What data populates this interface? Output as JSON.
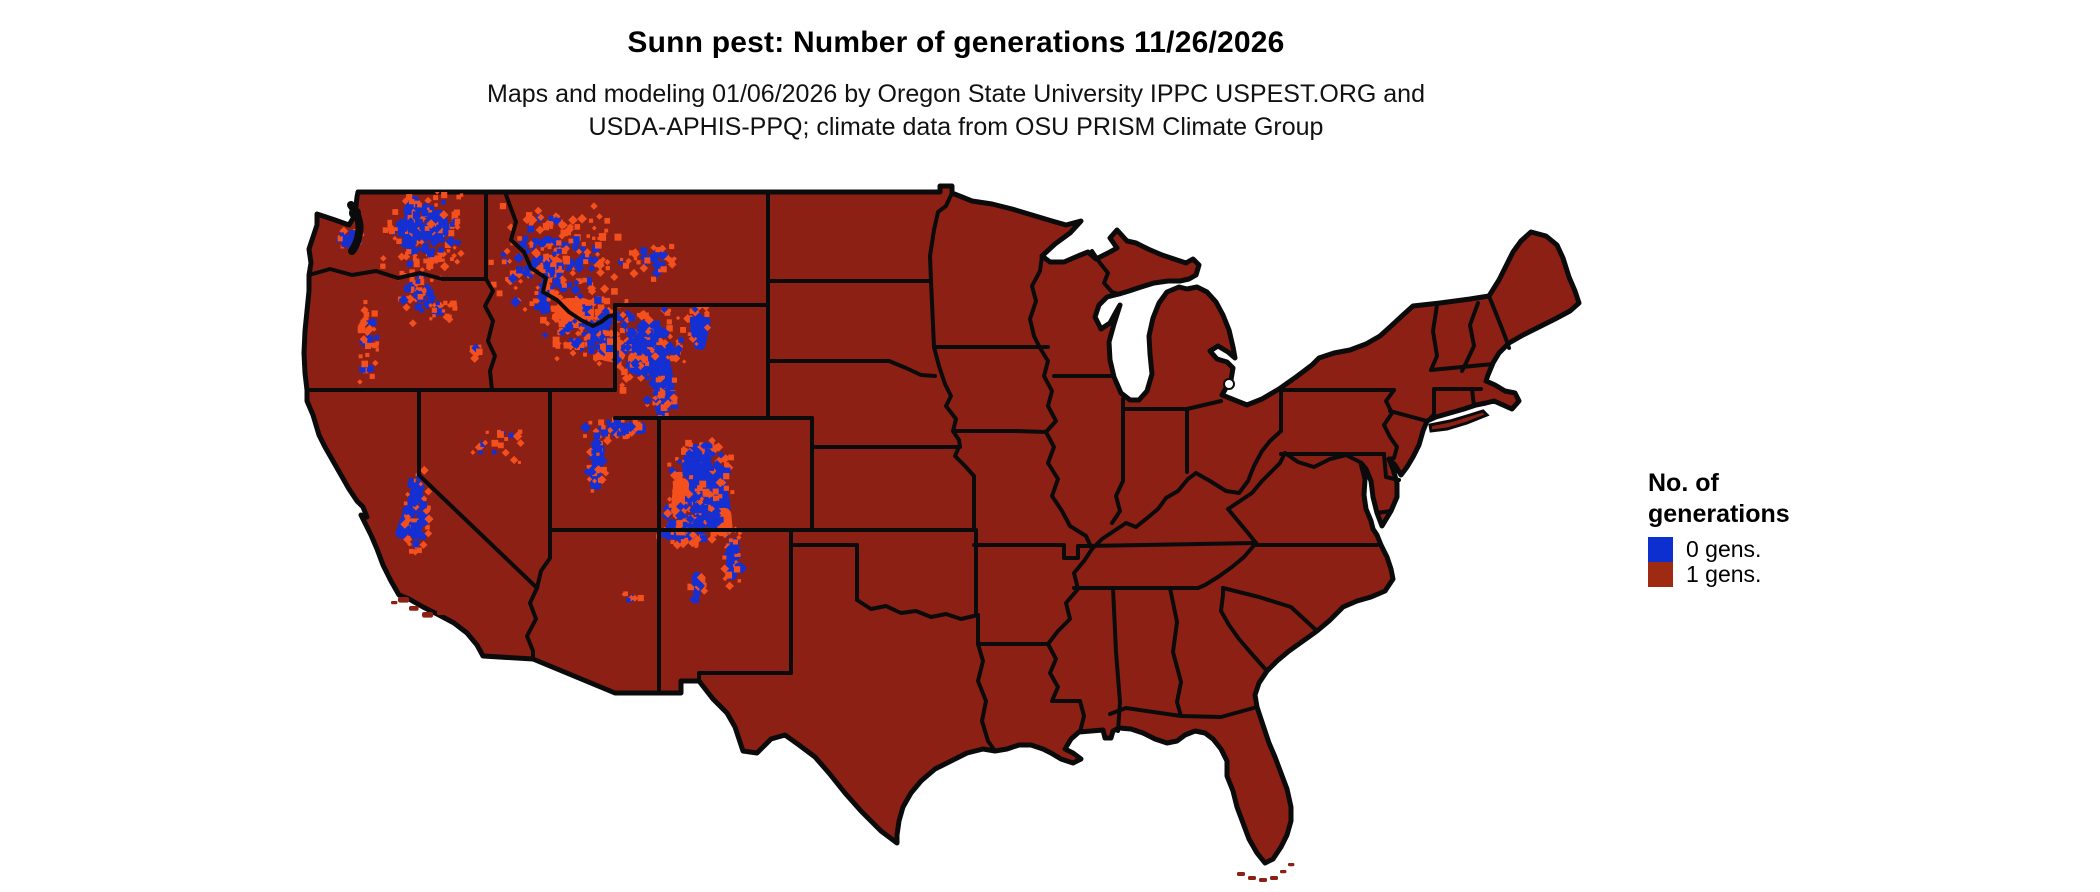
{
  "header": {
    "title": "Sunn pest: Number of generations 11/26/2026",
    "subtitle_line1": "Maps and modeling 01/06/2026 by Oregon State University IPPC USPEST.ORG and",
    "subtitle_line2": "USDA-APHIS-PPQ; climate data from OSU PRISM Climate Group"
  },
  "legend": {
    "title_line1": "No. of",
    "title_line2": "generations",
    "items": [
      {
        "label": "0 gens.",
        "color": "#0d2fd0"
      },
      {
        "label": "1 gens.",
        "color": "#9e2a12"
      }
    ]
  },
  "map": {
    "land_color": "#8d2015",
    "border_color": "#0b0b0b",
    "water_color": "#ffffff",
    "zero_gens_color": "#1430d2",
    "fringe_color": "#f4501e",
    "zero_gen_regions": [
      "Washington Cascades",
      "Olympic Mountains",
      "Oregon Cascades",
      "Northern Rockies (Idaho panhandle / western Montana)",
      "Yellowstone and Wind River ranges (Wyoming)",
      "Bighorn Mountains",
      "Uinta and Wasatch ranges (Utah)",
      "Colorado Rockies and Sangre de Cristo (into New Mexico)",
      "Sierra Nevada (California)"
    ],
    "speckle_clusters": [
      [
        425,
        230,
        45,
        42,
        170,
        0.5
      ],
      [
        420,
        292,
        24,
        38,
        55,
        0.35
      ],
      [
        350,
        240,
        13,
        11,
        22,
        0.55
      ],
      [
        368,
        342,
        11,
        48,
        40,
        0.3
      ],
      [
        441,
        310,
        16,
        13,
        18,
        0.45
      ],
      [
        558,
        262,
        68,
        58,
        230,
        0.3
      ],
      [
        592,
        330,
        52,
        38,
        150,
        0.35
      ],
      [
        650,
        262,
        30,
        20,
        35,
        0.25
      ],
      [
        648,
        350,
        42,
        48,
        170,
        0.5
      ],
      [
        698,
        325,
        13,
        20,
        35,
        0.6
      ],
      [
        662,
        395,
        18,
        24,
        40,
        0.5
      ],
      [
        614,
        428,
        32,
        11,
        40,
        0.55
      ],
      [
        597,
        462,
        11,
        34,
        42,
        0.5
      ],
      [
        702,
        468,
        34,
        30,
        130,
        0.55
      ],
      [
        700,
        515,
        38,
        34,
        150,
        0.5
      ],
      [
        733,
        560,
        11,
        30,
        40,
        0.5
      ],
      [
        676,
        532,
        20,
        14,
        45,
        0.45
      ],
      [
        416,
        515,
        15,
        48,
        85,
        0.55
      ],
      [
        498,
        448,
        38,
        26,
        20,
        0.25
      ],
      [
        698,
        585,
        8,
        17,
        16,
        0.4
      ],
      [
        632,
        598,
        14,
        9,
        7,
        0.25
      ],
      [
        475,
        350,
        12,
        10,
        10,
        0.4
      ]
    ],
    "core_patches": [
      [
        632,
        320,
        24,
        56,
        18,
        "blue"
      ],
      [
        650,
        350,
        22,
        44,
        -12,
        "blue"
      ],
      [
        696,
        316,
        12,
        34,
        12,
        "blue"
      ],
      [
        656,
        386,
        15,
        28,
        8,
        "blue"
      ],
      [
        686,
        444,
        20,
        62,
        6,
        "blue"
      ],
      [
        704,
        468,
        24,
        50,
        -10,
        "blue"
      ],
      [
        666,
        520,
        26,
        18,
        0,
        "blue"
      ],
      [
        727,
        538,
        11,
        42,
        4,
        "blue"
      ],
      [
        693,
        572,
        8,
        24,
        0,
        "blue"
      ],
      [
        608,
        423,
        38,
        11,
        0,
        "blue"
      ],
      [
        592,
        444,
        11,
        46,
        6,
        "blue"
      ],
      [
        404,
        480,
        12,
        60,
        20,
        "blue"
      ],
      [
        404,
        196,
        15,
        50,
        4,
        "blue"
      ],
      [
        428,
        210,
        20,
        28,
        -8,
        "blue"
      ],
      [
        538,
        290,
        11,
        24,
        -10,
        "blue"
      ],
      [
        596,
        314,
        13,
        20,
        25,
        "blue"
      ],
      [
        556,
        298,
        38,
        30,
        0,
        "orange"
      ],
      [
        598,
        338,
        28,
        24,
        10,
        "orange"
      ],
      [
        540,
        258,
        24,
        20,
        -15,
        "orange"
      ],
      [
        672,
        478,
        16,
        38,
        5,
        "orange"
      ],
      [
        714,
        508,
        18,
        28,
        -5,
        "orange"
      ],
      [
        628,
        352,
        20,
        16,
        0,
        "orange"
      ]
    ],
    "channel_islands": [
      [
        398,
        597,
        7
      ],
      [
        409,
        606,
        6
      ],
      [
        422,
        612,
        7
      ],
      [
        437,
        611,
        5
      ],
      [
        391,
        601,
        4
      ]
    ],
    "florida_keys": [
      [
        1237,
        872,
        5
      ],
      [
        1248,
        876,
        5
      ],
      [
        1259,
        878,
        5
      ],
      [
        1270,
        876,
        5
      ],
      [
        1280,
        870,
        4
      ],
      [
        1288,
        863,
        4
      ]
    ]
  }
}
